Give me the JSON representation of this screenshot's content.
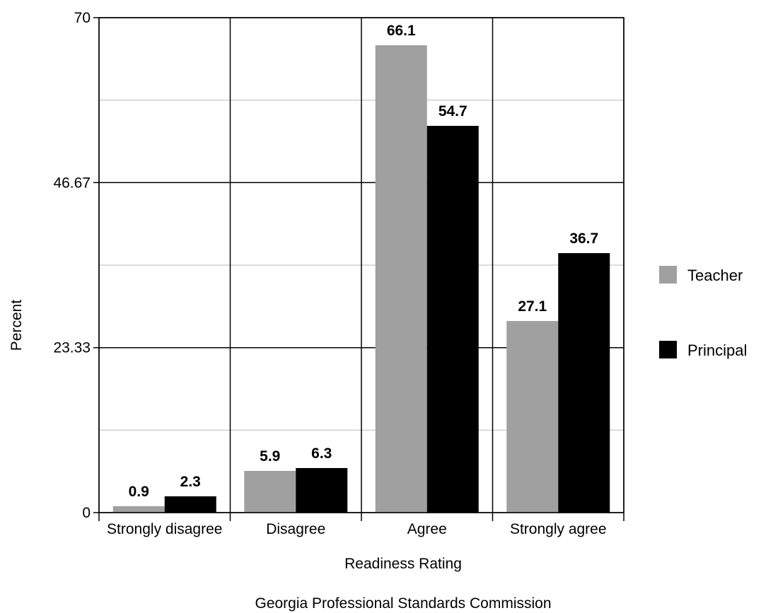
{
  "chart_data": {
    "type": "bar",
    "categories": [
      "Strongly disagree",
      "Disagree",
      "Agree",
      "Strongly agree"
    ],
    "series": [
      {
        "name": "Teacher",
        "values": [
          0.9,
          5.9,
          66.1,
          27.1
        ],
        "color": "#a0a0a0"
      },
      {
        "name": "Principal",
        "values": [
          2.3,
          6.3,
          54.7,
          36.7
        ],
        "color": "#000000"
      }
    ],
    "xlabel": "Readiness Rating",
    "ylabel": "Percent",
    "ylim": [
      0,
      70
    ],
    "yticks": [
      "0",
      "23.33",
      "46.67",
      "70"
    ],
    "grid": true,
    "legend_position": "right",
    "source": "Georgia Professional Standards Commission"
  }
}
